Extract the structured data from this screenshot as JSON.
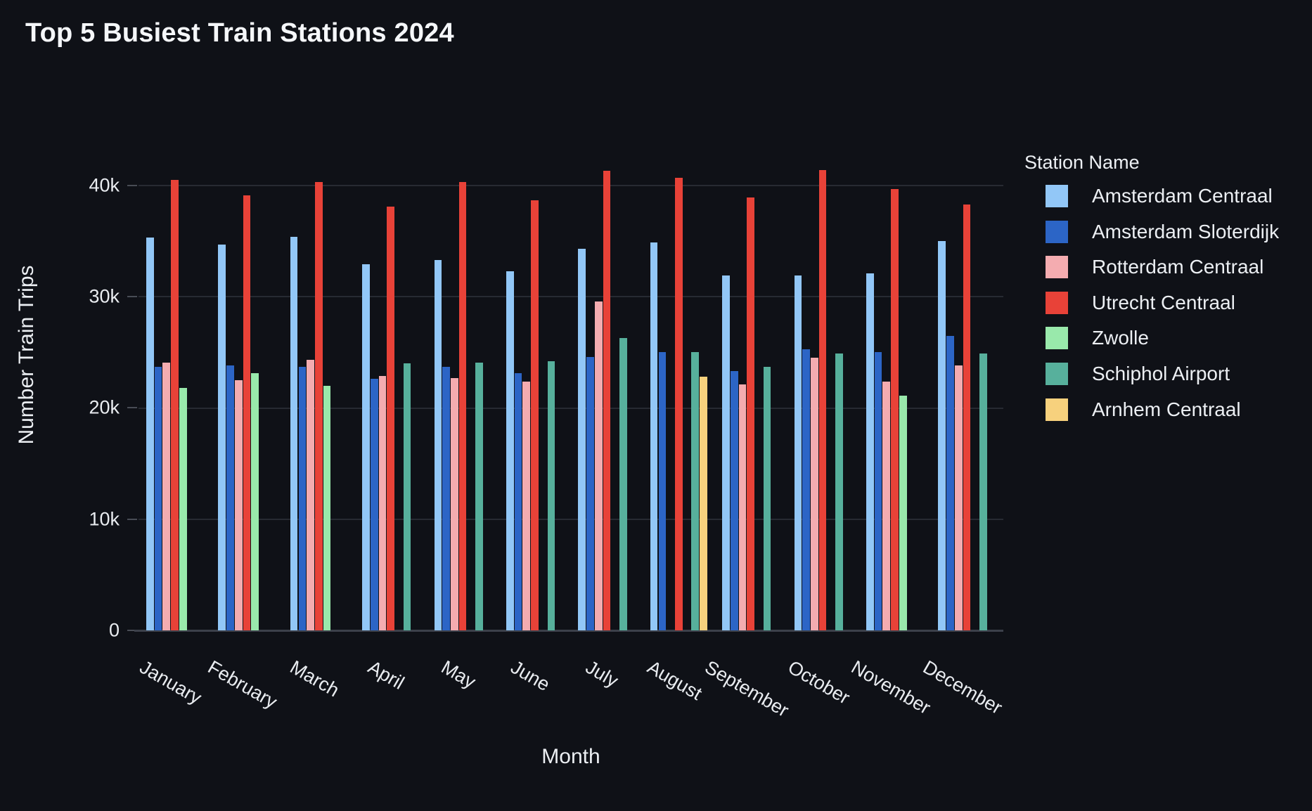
{
  "colors": {
    "background": "#0f1117",
    "text": "#e9ecf0",
    "gridline": "#272a32",
    "zeroline": "#3c404a",
    "tick_mark": "#484c55"
  },
  "chart_data": {
    "type": "bar",
    "title": "Top 5 Busiest Train Stations 2024",
    "xlabel": "Month",
    "ylabel": "Number Train Trips",
    "legend_title": "Station Name",
    "legend_position": "right",
    "grid": true,
    "bar_mode": "grouped",
    "note": "Each month shows only the top 5 stations; missing series leave an empty slot in the group",
    "ylim": [
      0,
      43600
    ],
    "yticks": [
      {
        "value": 0,
        "label": "0"
      },
      {
        "value": 10000,
        "label": "10k"
      },
      {
        "value": 20000,
        "label": "20k"
      },
      {
        "value": 30000,
        "label": "30k"
      },
      {
        "value": 40000,
        "label": "40k"
      }
    ],
    "categories": [
      "January",
      "February",
      "March",
      "April",
      "May",
      "June",
      "July",
      "August",
      "September",
      "October",
      "November",
      "December"
    ],
    "series": [
      {
        "name": "Amsterdam Centraal",
        "color": "#92c7f7",
        "values": [
          35300,
          34700,
          35400,
          32900,
          33300,
          32300,
          34300,
          34900,
          31900,
          31900,
          32100,
          35000
        ]
      },
      {
        "name": "Amsterdam Sloterdijk",
        "color": "#2c65c6",
        "values": [
          23700,
          23800,
          23700,
          22600,
          23700,
          23100,
          24600,
          25000,
          23300,
          25300,
          25000,
          26500
        ]
      },
      {
        "name": "Rotterdam Centraal",
        "color": "#f4acb0",
        "values": [
          24100,
          22500,
          24300,
          22900,
          22700,
          22400,
          29600,
          null,
          22100,
          24500,
          22400,
          23800
        ]
      },
      {
        "name": "Utrecht Centraal",
        "color": "#e84238",
        "values": [
          40500,
          39100,
          40300,
          38100,
          40300,
          38700,
          41300,
          40700,
          38900,
          41400,
          39700,
          38300
        ]
      },
      {
        "name": "Zwolle",
        "color": "#99e9ab",
        "values": [
          21800,
          23100,
          22000,
          null,
          null,
          null,
          null,
          null,
          null,
          null,
          21100,
          null
        ]
      },
      {
        "name": "Schiphol Airport",
        "color": "#57b09c",
        "values": [
          null,
          null,
          null,
          24000,
          24100,
          24200,
          26300,
          25000,
          23700,
          24900,
          null,
          24900
        ]
      },
      {
        "name": "Arnhem Centraal",
        "color": "#f7d17d",
        "values": [
          null,
          null,
          null,
          null,
          null,
          null,
          null,
          22800,
          null,
          null,
          null,
          null
        ]
      }
    ]
  }
}
